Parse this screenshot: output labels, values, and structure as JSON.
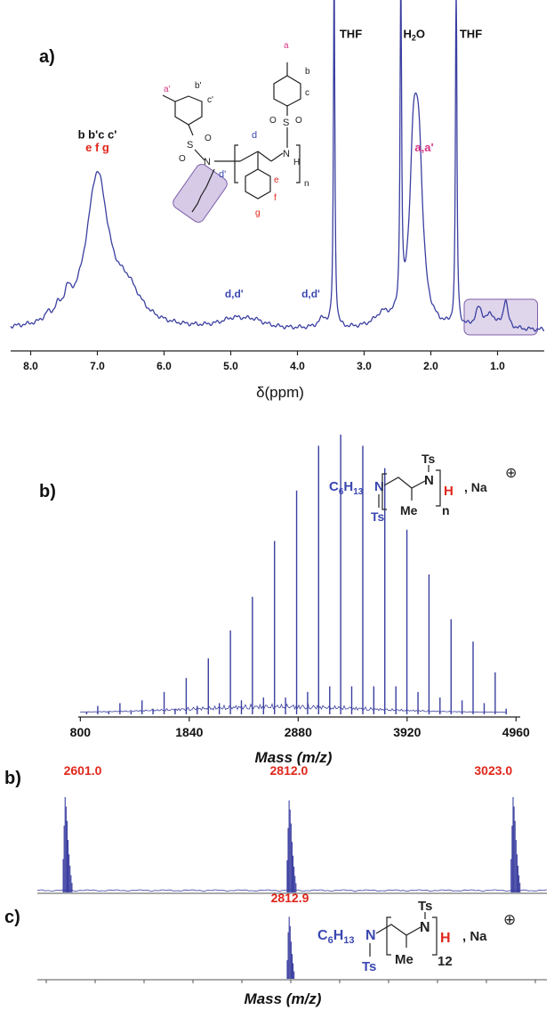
{
  "colors": {
    "spectrum": "#3b3fa0",
    "structure_blue": "#3a47b0",
    "peak_red": "#e0261b",
    "proton_pink": "#d63384",
    "highlight_fill": "#c5b4dd",
    "highlight_stroke": "#7d5fa8"
  },
  "chart_data": [
    {
      "id": "nmr",
      "type": "line",
      "panel_label": "a)",
      "xlabel": "δ(ppm)",
      "x_reversed": true,
      "xlim": [
        8.3,
        0.3
      ],
      "ylim": [
        0,
        1
      ],
      "xticks": [
        {
          "value": 8.0,
          "label": "8.0"
        },
        {
          "value": 7.0,
          "label": "7.0"
        },
        {
          "value": 6.0,
          "label": "6.0"
        },
        {
          "value": 5.0,
          "label": "5.0"
        },
        {
          "value": 4.0,
          "label": "4.0"
        },
        {
          "value": 3.0,
          "label": "3.0"
        },
        {
          "value": 2.0,
          "label": "2.0"
        },
        {
          "value": 1.0,
          "label": "1.0"
        }
      ],
      "peaks": [
        {
          "center": 7.0,
          "height": 0.48,
          "width": 0.2
        },
        {
          "center": 6.55,
          "height": 0.1,
          "width": 0.25
        },
        {
          "center": 7.45,
          "height": 0.06,
          "width": 0.06
        },
        {
          "center": 7.6,
          "height": 0.03,
          "width": 0.05
        },
        {
          "center": 7.75,
          "height": 0.02,
          "width": 0.05
        },
        {
          "center": 4.95,
          "height": 0.028,
          "width": 0.25
        },
        {
          "center": 4.65,
          "height": 0.02,
          "width": 0.2
        },
        {
          "center": 3.62,
          "height": 0.03,
          "width": 0.08
        },
        {
          "center": 3.45,
          "height": 1.2,
          "width": 0.012
        },
        {
          "center": 2.72,
          "height": 0.04,
          "width": 0.15
        },
        {
          "center": 2.45,
          "height": 1.2,
          "width": 0.012
        },
        {
          "center": 2.26,
          "height": 0.5,
          "width": 0.07
        },
        {
          "center": 2.18,
          "height": 0.48,
          "width": 0.07
        },
        {
          "center": 1.62,
          "height": 1.2,
          "width": 0.012
        },
        {
          "center": 1.28,
          "height": 0.06,
          "width": 0.06
        },
        {
          "center": 0.88,
          "height": 0.09,
          "width": 0.04
        },
        {
          "center": 1.1,
          "height": 0.04,
          "width": 0.08
        }
      ],
      "peak_labels": [
        {
          "text": "THF",
          "ppm": 3.2,
          "level": 0.93,
          "color": "black"
        },
        {
          "text": "H₂O",
          "ppm": 2.25,
          "level": 0.93,
          "color": "black"
        },
        {
          "text": "THF",
          "ppm": 1.4,
          "level": 0.93,
          "color": "black"
        },
        {
          "text": "b b'c c'",
          "ppm": 7.0,
          "level": 0.61,
          "color": "black"
        },
        {
          "text": "e f g",
          "ppm": 7.0,
          "level": 0.57,
          "color": "red"
        },
        {
          "text": "a,a'",
          "ppm": 2.1,
          "level": 0.57,
          "color": "pink"
        },
        {
          "text": "d,d'",
          "ppm": 4.95,
          "level": 0.105,
          "color": "blue"
        },
        {
          "text": "d,d'",
          "ppm": 3.8,
          "level": 0.105,
          "color": "blue"
        }
      ],
      "highlight_region": [
        0.4,
        1.5
      ]
    },
    {
      "id": "maldi-full",
      "type": "bar",
      "panel_label": "b)",
      "xlabel": "Mass (m/z)",
      "xlim": [
        780,
        5000
      ],
      "ylim": [
        0,
        1
      ],
      "xticks": [
        {
          "value": 800,
          "label": "800"
        },
        {
          "value": 1840,
          "label": "1840"
        },
        {
          "value": 2880,
          "label": "2880"
        },
        {
          "value": 3920,
          "label": "3920"
        },
        {
          "value": 4960,
          "label": "4960"
        }
      ],
      "peaks_mz": [
        860,
        966,
        1072,
        1178,
        1284,
        1389,
        1494,
        1600,
        1705,
        1811,
        1916,
        2022,
        2127,
        2233,
        2338,
        2443,
        2549,
        2654,
        2759,
        2865,
        2970,
        3075,
        3181,
        3286,
        3391,
        3497,
        3602,
        3707,
        3813,
        3918,
        4024,
        4129,
        4234,
        4340,
        4445,
        4550,
        4656,
        4761,
        4866
      ],
      "intensities": [
        0.01,
        0.03,
        0.01,
        0.04,
        0.01,
        0.05,
        0.02,
        0.08,
        0.02,
        0.13,
        0.03,
        0.2,
        0.04,
        0.3,
        0.05,
        0.42,
        0.06,
        0.62,
        0.06,
        0.8,
        0.08,
        0.96,
        0.1,
        1.0,
        0.1,
        0.96,
        0.1,
        0.88,
        0.1,
        0.66,
        0.08,
        0.5,
        0.06,
        0.34,
        0.05,
        0.26,
        0.04,
        0.15,
        0.02
      ]
    },
    {
      "id": "maldi-zoom",
      "type": "bar",
      "panel_label": "b)",
      "xlim": [
        2575,
        3055
      ],
      "ylim": [
        0,
        1
      ],
      "peaks": [
        {
          "mz": 2601.0,
          "label": "2601.0",
          "height": 0.85
        },
        {
          "mz": 2812.0,
          "label": "2812.0",
          "height": 0.82
        },
        {
          "mz": 3023.0,
          "label": "3023.0",
          "height": 0.85
        }
      ]
    },
    {
      "id": "simulated",
      "type": "bar",
      "panel_label": "c)",
      "xlabel": "Mass (m/z)",
      "xlim": [
        2575,
        3055
      ],
      "ylim": [
        0,
        1
      ],
      "peaks": [
        {
          "mz": 2812.9,
          "label": "2812.9",
          "height": 0.85
        }
      ]
    }
  ],
  "structures": {
    "nmr": {
      "labels": {
        "a": "a",
        "b": "b",
        "c": "c",
        "a_prime": "a'",
        "b_prime": "b'",
        "c_prime": "c'",
        "d": "d",
        "d_prime": "d'",
        "e": "e",
        "f": "f",
        "g": "g",
        "n": "n",
        "N1": "N",
        "N2": "N",
        "H": "H",
        "S1": "S",
        "S2": "S",
        "O1": "O",
        "O2": "O",
        "O3": "O",
        "O4": "O"
      }
    },
    "polymer_b": {
      "c6h13_main": "C",
      "c6h13_sub6": "6",
      "c6h13_h": "H",
      "c6h13_sub13": "13",
      "n1": "N",
      "ts1": "Ts",
      "n2": "N",
      "ts2": "Ts",
      "h": "H",
      "me": "Me",
      "index": "n",
      "na": ", Na",
      "plus": "⊕"
    },
    "polymer_c": {
      "c6h13_main": "C",
      "c6h13_sub6": "6",
      "c6h13_h": "H",
      "c6h13_sub13": "13",
      "n1": "N",
      "ts1": "Ts",
      "n2": "N",
      "ts2": "Ts",
      "h": "H",
      "me": "Me",
      "index": "12",
      "na": ", Na",
      "plus": "⊕"
    }
  }
}
